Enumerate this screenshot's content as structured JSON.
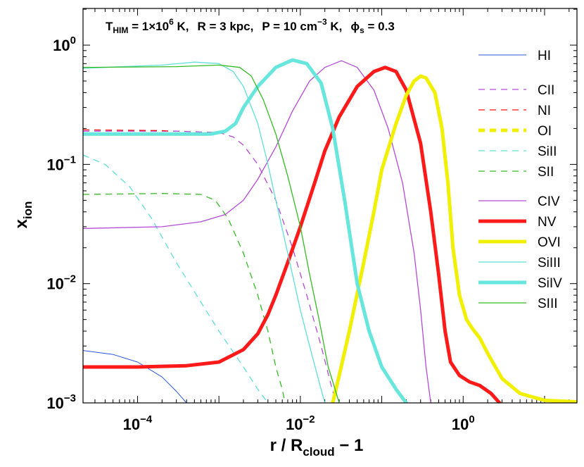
{
  "chart_data": {
    "type": "line",
    "scale": {
      "x": "log",
      "y": "log"
    },
    "xlim": [
      2.14e-05,
      25
    ],
    "ylim": [
      0.001,
      2.03
    ],
    "xlabel": {
      "main": "r / R",
      "sub": "cloud",
      "tail": " − 1"
    },
    "ylabel": {
      "main": "x",
      "sub": "ion"
    },
    "title": {
      "t_label": "T",
      "t_sub": "HIM",
      "t_rest": " = 1×10",
      "t_exp": "6",
      "t_unit": " K,",
      "r_text": "R = 3 kpc,",
      "p_text": "P = 10 cm",
      "p_exp": "−3",
      "p_unit": " K,",
      "phi": "ϕ",
      "phi_sub": "s",
      "phi_rest": " = 0.3"
    },
    "x_ticks": [
      {
        "value": 0.0001,
        "base": "10",
        "exp": "−4"
      },
      {
        "value": 0.01,
        "base": "10",
        "exp": "−2"
      },
      {
        "value": 1,
        "base": "10",
        "exp": "0"
      }
    ],
    "y_ticks": [
      {
        "value": 1,
        "base": "10",
        "exp": "0"
      },
      {
        "value": 0.1,
        "base": "10",
        "exp": "−1"
      },
      {
        "value": 0.01,
        "base": "10",
        "exp": "−2"
      },
      {
        "value": 0.001,
        "base": "10",
        "exp": "−3"
      }
    ],
    "series": [
      {
        "name": "HI",
        "color": "#2b55e0",
        "width": 1,
        "dash": false,
        "legend_group": 0,
        "points": [
          [
            2.14e-05,
            0.00275
          ],
          [
            5e-05,
            0.00255
          ],
          [
            0.0001,
            0.0022
          ],
          [
            0.0002,
            0.00165
          ],
          [
            0.0003,
            0.00125
          ],
          [
            0.0004,
            0.001
          ]
        ]
      },
      {
        "name": "CII",
        "color": "#b44ad8",
        "width": 1.3,
        "dash": true,
        "legend_group": 1,
        "points": [
          [
            2.14e-05,
            0.19
          ],
          [
            0.0003,
            0.19
          ],
          [
            0.001,
            0.185
          ],
          [
            0.0015,
            0.17
          ],
          [
            0.002,
            0.145
          ],
          [
            0.003,
            0.1
          ],
          [
            0.005,
            0.05
          ],
          [
            0.008,
            0.02
          ],
          [
            0.012,
            0.008
          ],
          [
            0.018,
            0.003
          ],
          [
            0.025,
            0.00125
          ],
          [
            0.028,
            0.001
          ]
        ]
      },
      {
        "name": "NI",
        "color": "#ff1010",
        "width": 1.3,
        "dash": true,
        "legend_group": 1,
        "points": [
          [
            2.14e-05,
            0.195
          ],
          [
            0.0002,
            0.192
          ],
          [
            0.00025,
            0.19
          ]
        ]
      },
      {
        "name": "OI",
        "color": "#f0f000",
        "width": 5,
        "dash": true,
        "legend_group": 1,
        "points": []
      },
      {
        "name": "SiII",
        "color": "#5fe0d8",
        "width": 1.3,
        "dash": true,
        "legend_group": 1,
        "points": [
          [
            2.14e-05,
            0.12
          ],
          [
            4e-05,
            0.1
          ],
          [
            8e-05,
            0.065
          ],
          [
            0.00015,
            0.035
          ],
          [
            0.0003,
            0.015
          ],
          [
            0.0006,
            0.007
          ],
          [
            0.001,
            0.004
          ],
          [
            0.002,
            0.002
          ],
          [
            0.003,
            0.0013
          ],
          [
            0.004,
            0.001
          ]
        ]
      },
      {
        "name": "SII",
        "color": "#33bb22",
        "width": 1.3,
        "dash": true,
        "legend_group": 1,
        "points": [
          [
            2.14e-05,
            0.056
          ],
          [
            0.0002,
            0.057
          ],
          [
            0.0006,
            0.056
          ],
          [
            0.0009,
            0.05
          ],
          [
            0.0013,
            0.035
          ],
          [
            0.002,
            0.018
          ],
          [
            0.003,
            0.008
          ],
          [
            0.004,
            0.004
          ],
          [
            0.005,
            0.002
          ],
          [
            0.006,
            0.0013
          ],
          [
            0.0065,
            0.001
          ]
        ]
      },
      {
        "name": "CIV",
        "color": "#b44ad8",
        "width": 1.3,
        "dash": false,
        "legend_group": 2,
        "points": [
          [
            2.14e-05,
            0.029
          ],
          [
            0.0002,
            0.03
          ],
          [
            0.0006,
            0.033
          ],
          [
            0.0012,
            0.038
          ],
          [
            0.002,
            0.05
          ],
          [
            0.003,
            0.075
          ],
          [
            0.005,
            0.14
          ],
          [
            0.008,
            0.28
          ],
          [
            0.013,
            0.5
          ],
          [
            0.02,
            0.65
          ],
          [
            0.032,
            0.74
          ],
          [
            0.05,
            0.65
          ],
          [
            0.08,
            0.42
          ],
          [
            0.12,
            0.2
          ],
          [
            0.18,
            0.07
          ],
          [
            0.25,
            0.018
          ],
          [
            0.3,
            0.006
          ],
          [
            0.35,
            0.002
          ],
          [
            0.4,
            0.001
          ]
        ]
      },
      {
        "name": "NV",
        "color": "#ff1a1a",
        "width": 5,
        "dash": false,
        "legend_group": 2,
        "points": [
          [
            2.14e-05,
            0.002
          ],
          [
            0.0001,
            0.002
          ],
          [
            0.0004,
            0.00205
          ],
          [
            0.001,
            0.0022
          ],
          [
            0.002,
            0.0028
          ],
          [
            0.003,
            0.0038
          ],
          [
            0.004,
            0.0055
          ],
          [
            0.005,
            0.008
          ],
          [
            0.007,
            0.015
          ],
          [
            0.01,
            0.03
          ],
          [
            0.015,
            0.07
          ],
          [
            0.02,
            0.13
          ],
          [
            0.03,
            0.25
          ],
          [
            0.05,
            0.45
          ],
          [
            0.08,
            0.6
          ],
          [
            0.11,
            0.65
          ],
          [
            0.15,
            0.6
          ],
          [
            0.2,
            0.42
          ],
          [
            0.3,
            0.15
          ],
          [
            0.4,
            0.04
          ],
          [
            0.5,
            0.012
          ],
          [
            0.6,
            0.004
          ],
          [
            0.7,
            0.0022
          ],
          [
            0.9,
            0.0017
          ],
          [
            1.2,
            0.0015
          ],
          [
            1.6,
            0.0014
          ],
          [
            2.2,
            0.0012
          ],
          [
            2.8,
            0.001
          ]
        ]
      },
      {
        "name": "OVI",
        "color": "#f0f000",
        "width": 5,
        "dash": false,
        "legend_group": 2,
        "points": [
          [
            0.025,
            0.001
          ],
          [
            0.03,
            0.0017
          ],
          [
            0.04,
            0.004
          ],
          [
            0.06,
            0.015
          ],
          [
            0.08,
            0.04
          ],
          [
            0.1,
            0.09
          ],
          [
            0.15,
            0.22
          ],
          [
            0.2,
            0.38
          ],
          [
            0.25,
            0.5
          ],
          [
            0.3,
            0.55
          ],
          [
            0.35,
            0.53
          ],
          [
            0.45,
            0.4
          ],
          [
            0.55,
            0.2
          ],
          [
            0.65,
            0.07
          ],
          [
            0.75,
            0.02
          ],
          [
            0.9,
            0.008
          ],
          [
            1.1,
            0.005
          ],
          [
            1.3,
            0.0042
          ],
          [
            1.6,
            0.0035
          ],
          [
            2,
            0.0026
          ],
          [
            3,
            0.0016
          ],
          [
            5,
            0.0012
          ],
          [
            10,
            0.00105
          ],
          [
            25,
            0.00102
          ]
        ]
      },
      {
        "name": "SiIII",
        "color": "#5fe0d8",
        "width": 1.3,
        "dash": false,
        "legend_group": 2,
        "points": [
          [
            2.14e-05,
            0.64
          ],
          [
            0.0002,
            0.68
          ],
          [
            0.0005,
            0.72
          ],
          [
            0.001,
            0.7
          ],
          [
            0.0015,
            0.6
          ],
          [
            0.002,
            0.45
          ],
          [
            0.003,
            0.22
          ],
          [
            0.004,
            0.1
          ],
          [
            0.005,
            0.05
          ],
          [
            0.007,
            0.018
          ],
          [
            0.01,
            0.006
          ],
          [
            0.013,
            0.003
          ],
          [
            0.017,
            0.0015
          ],
          [
            0.02,
            0.001
          ]
        ]
      },
      {
        "name": "SiIV",
        "color": "#66e6dc",
        "width": 5,
        "dash": false,
        "legend_group": 2,
        "points": [
          [
            2.14e-05,
            0.18
          ],
          [
            0.0004,
            0.18
          ],
          [
            0.0008,
            0.18
          ],
          [
            0.0012,
            0.19
          ],
          [
            0.0016,
            0.22
          ],
          [
            0.002,
            0.3
          ],
          [
            0.003,
            0.45
          ],
          [
            0.005,
            0.65
          ],
          [
            0.008,
            0.75
          ],
          [
            0.012,
            0.7
          ],
          [
            0.018,
            0.48
          ],
          [
            0.025,
            0.2
          ],
          [
            0.035,
            0.05
          ],
          [
            0.05,
            0.01
          ],
          [
            0.07,
            0.004
          ],
          [
            0.1,
            0.002
          ],
          [
            0.15,
            0.0013
          ],
          [
            0.2,
            0.001
          ]
        ]
      },
      {
        "name": "SIII",
        "color": "#33bb22",
        "width": 1.3,
        "dash": false,
        "legend_group": 2,
        "points": [
          [
            2.14e-05,
            0.65
          ],
          [
            0.0003,
            0.66
          ],
          [
            0.001,
            0.68
          ],
          [
            0.0018,
            0.65
          ],
          [
            0.0025,
            0.55
          ],
          [
            0.0035,
            0.35
          ],
          [
            0.005,
            0.18
          ],
          [
            0.007,
            0.08
          ],
          [
            0.01,
            0.03
          ],
          [
            0.013,
            0.012
          ],
          [
            0.017,
            0.005
          ],
          [
            0.022,
            0.002
          ],
          [
            0.03,
            0.001
          ]
        ]
      }
    ]
  }
}
